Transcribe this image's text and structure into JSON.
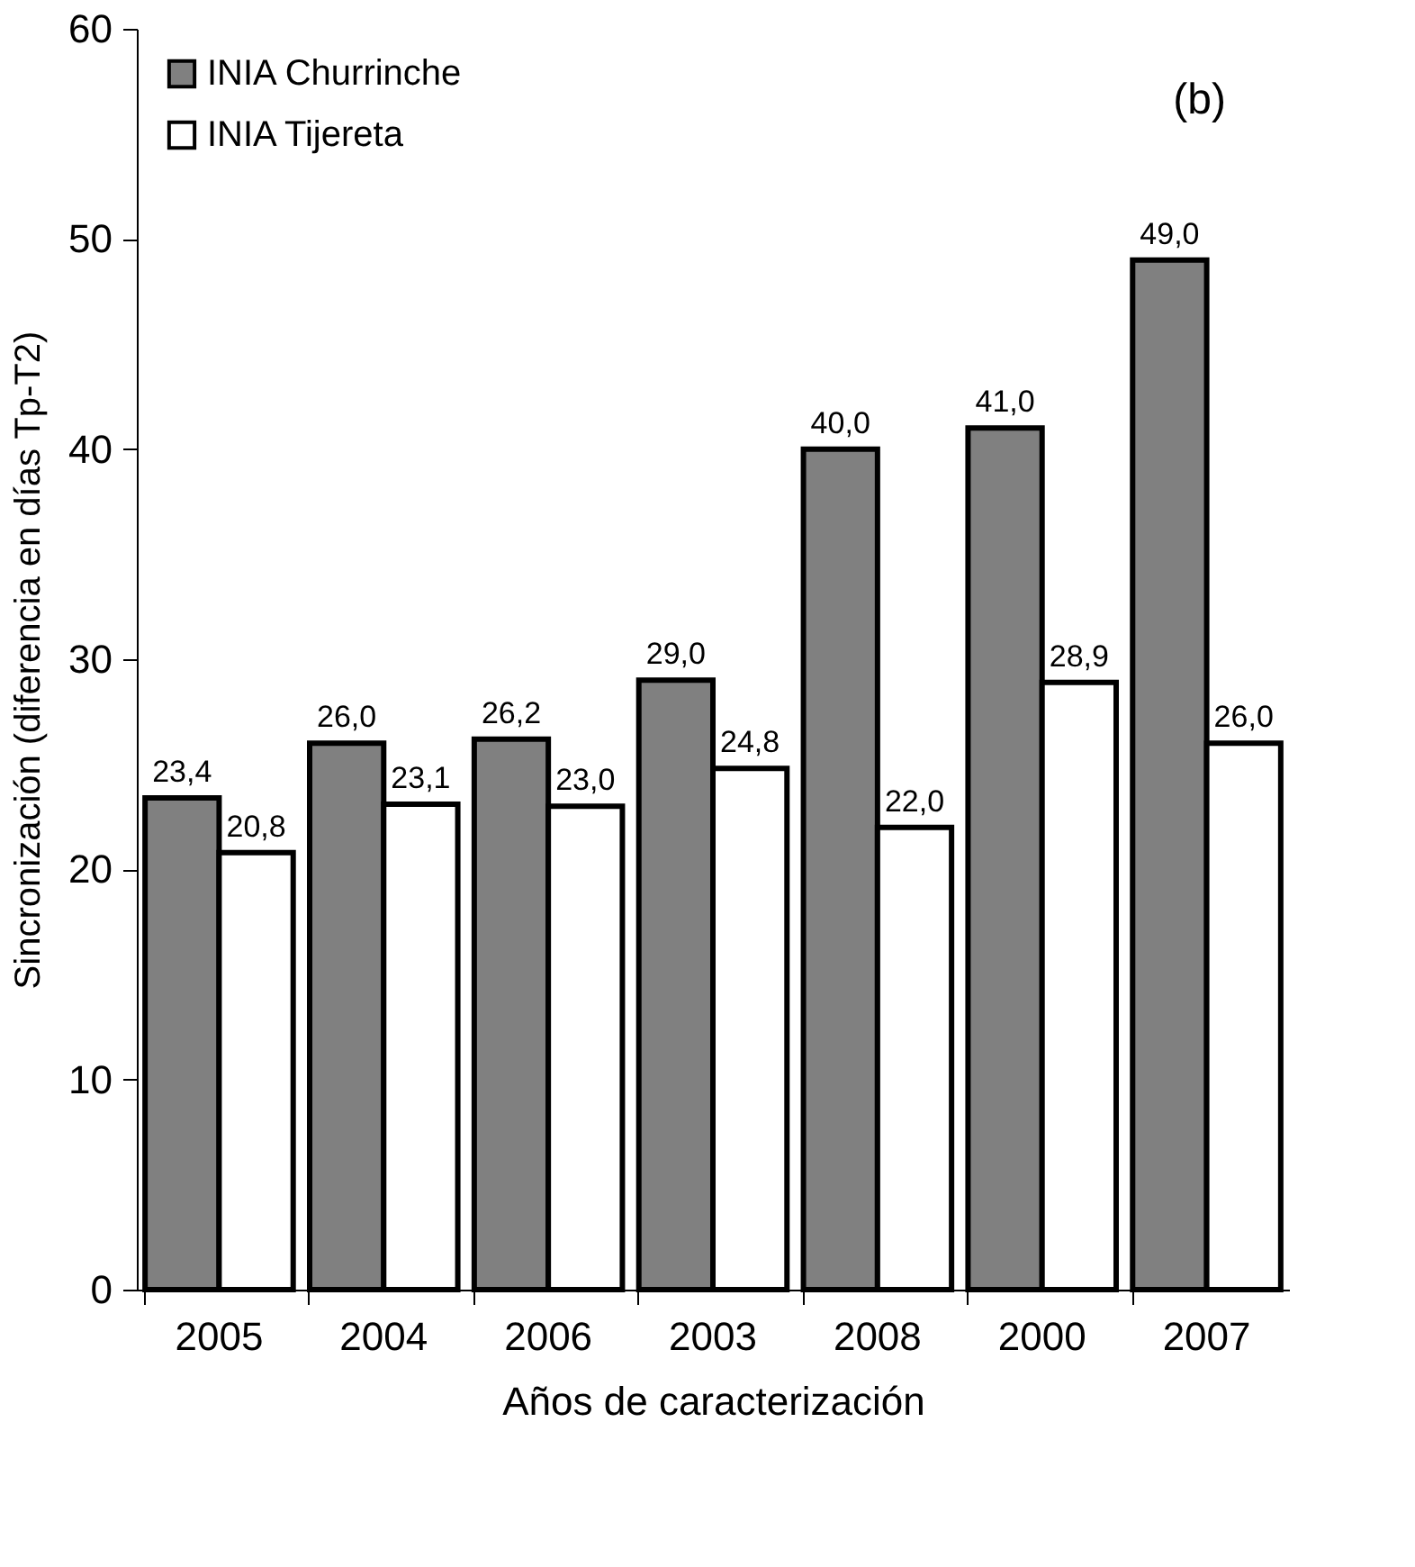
{
  "chart_data": {
    "type": "bar",
    "xlabel": "Años de caracterización",
    "ylabel": "Sincronización (diferencia en días Tp-T2)",
    "categories": [
      "2005",
      "2004",
      "2006",
      "2003",
      "2008",
      "2000",
      "2007"
    ],
    "series": [
      {
        "name": "INIA Churrinche",
        "color": "#808080",
        "values": [
          23.4,
          26.0,
          26.2,
          29.0,
          40.0,
          41.0,
          49.0
        ],
        "value_labels": [
          "23,4",
          "26,0",
          "26,2",
          "29,0",
          "40,0",
          "41,0",
          "49,0"
        ]
      },
      {
        "name": "INIA Tijereta",
        "color": "#ffffff",
        "values": [
          20.8,
          23.1,
          23.0,
          24.8,
          22.0,
          28.9,
          26.0
        ],
        "value_labels": [
          "20,8",
          "23,1",
          "23,0",
          "24,8",
          "22,0",
          "28,9",
          "26,0"
        ]
      }
    ],
    "ylim": [
      0,
      60
    ],
    "yticks": [
      0,
      10,
      20,
      30,
      40,
      50,
      60
    ],
    "grid": false,
    "legend": "top left",
    "annotations": [
      "(b)"
    ]
  }
}
